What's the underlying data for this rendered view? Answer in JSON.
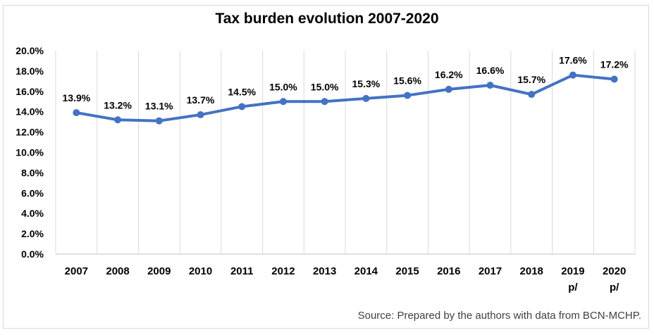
{
  "chart_data": {
    "type": "line",
    "title": "Tax burden evolution 2007-2020",
    "categories": [
      "2007",
      "2008",
      "2009",
      "2010",
      "2011",
      "2012",
      "2013",
      "2014",
      "2015",
      "2016",
      "2017",
      "2018",
      "2019",
      "2020"
    ],
    "x_sublabels": [
      "",
      "",
      "",
      "",
      "",
      "",
      "",
      "",
      "",
      "",
      "",
      "",
      "p/",
      "p/"
    ],
    "values": [
      13.9,
      13.2,
      13.1,
      13.7,
      14.5,
      15.0,
      15.0,
      15.3,
      15.6,
      16.2,
      16.6,
      15.7,
      17.6,
      17.2
    ],
    "data_labels": [
      "13.9%",
      "13.2%",
      "13.1%",
      "13.7%",
      "14.5%",
      "15.0%",
      "15.0%",
      "15.3%",
      "15.6%",
      "16.2%",
      "16.6%",
      "15.7%",
      "17.6%",
      "17.2%"
    ],
    "ylim": [
      0,
      20
    ],
    "ytick_step": 2,
    "ytick_labels": [
      "0.0%",
      "2.0%",
      "4.0%",
      "6.0%",
      "8.0%",
      "10.0%",
      "12.0%",
      "14.0%",
      "16.0%",
      "18.0%",
      "20.0%"
    ],
    "grid": "vertical-only",
    "legend": "none",
    "xlabel": "",
    "ylabel": "",
    "line_color": "#4472C4",
    "gridline_color": "#d9d9d9",
    "axis_line_color": "#c6c6c6",
    "label_color": "#000000",
    "source": "Source: Prepared by the authors with data from BCN-MCHP."
  }
}
